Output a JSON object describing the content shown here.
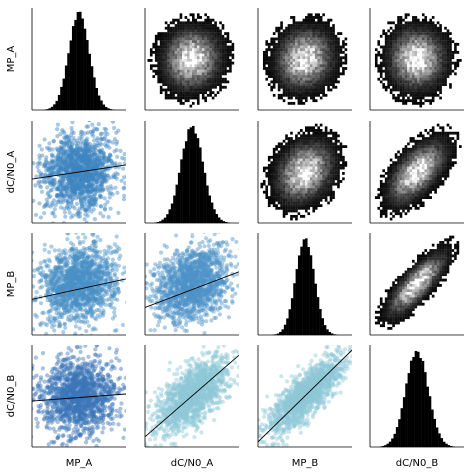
{
  "chart_data": {
    "type": "scatter",
    "variables": [
      "MP_A",
      "dC/N0_A",
      "MP_B",
      "dC/N0_B"
    ],
    "grid": false,
    "legend": "none",
    "diagonal": {
      "kind": "histogram",
      "color": "#000000",
      "histograms": [
        {
          "variable": "MP_A",
          "widthFrac": 0.11
        },
        {
          "variable": "dC/N0_A",
          "widthFrac": 0.12
        },
        {
          "variable": "MP_B",
          "widthFrac": 0.1
        },
        {
          "variable": "dC/N0_B",
          "widthFrac": 0.12
        }
      ]
    },
    "upper": {
      "kind": "2d-density",
      "colormap": "grays",
      "cells": [
        {
          "row": "MP_A",
          "col": "dC/N0_A",
          "correlation": 0.05
        },
        {
          "row": "MP_A",
          "col": "MP_B",
          "correlation": 0.1
        },
        {
          "row": "MP_A",
          "col": "dC/N0_B",
          "correlation": 0.0
        },
        {
          "row": "dC/N0_A",
          "col": "MP_B",
          "correlation": 0.25
        },
        {
          "row": "dC/N0_A",
          "col": "dC/N0_B",
          "correlation": 0.6
        },
        {
          "row": "MP_B",
          "col": "dC/N0_B",
          "correlation": 0.8
        }
      ]
    },
    "lower": {
      "kind": "scatter-with-regression-line",
      "line_color": "#000000",
      "cells": [
        {
          "row": "dC/N0_A",
          "col": "MP_A",
          "correlation": 0.12,
          "color": "#3f86c2",
          "fit_y_left": 0.43,
          "fit_y_right": 0.57
        },
        {
          "row": "MP_B",
          "col": "MP_A",
          "correlation": 0.15,
          "color": "#4a90c6",
          "fit_y_left": 0.35,
          "fit_y_right": 0.55
        },
        {
          "row": "MP_B",
          "col": "dC/N0_A",
          "correlation": 0.3,
          "color": "#4d93c8",
          "fit_y_left": 0.27,
          "fit_y_right": 0.62
        },
        {
          "row": "dC/N0_B",
          "col": "MP_A",
          "correlation": 0.05,
          "color": "#3b76b8",
          "fit_y_left": 0.45,
          "fit_y_right": 0.52
        },
        {
          "row": "dC/N0_B",
          "col": "dC/N0_A",
          "correlation": 0.65,
          "color": "#8fc8d8",
          "fit_y_left": 0.1,
          "fit_y_right": 0.9
        },
        {
          "row": "dC/N0_B",
          "col": "MP_B",
          "correlation": 0.8,
          "color": "#8fc8d8",
          "fit_y_left": 0.05,
          "fit_y_right": 0.95
        }
      ]
    }
  }
}
